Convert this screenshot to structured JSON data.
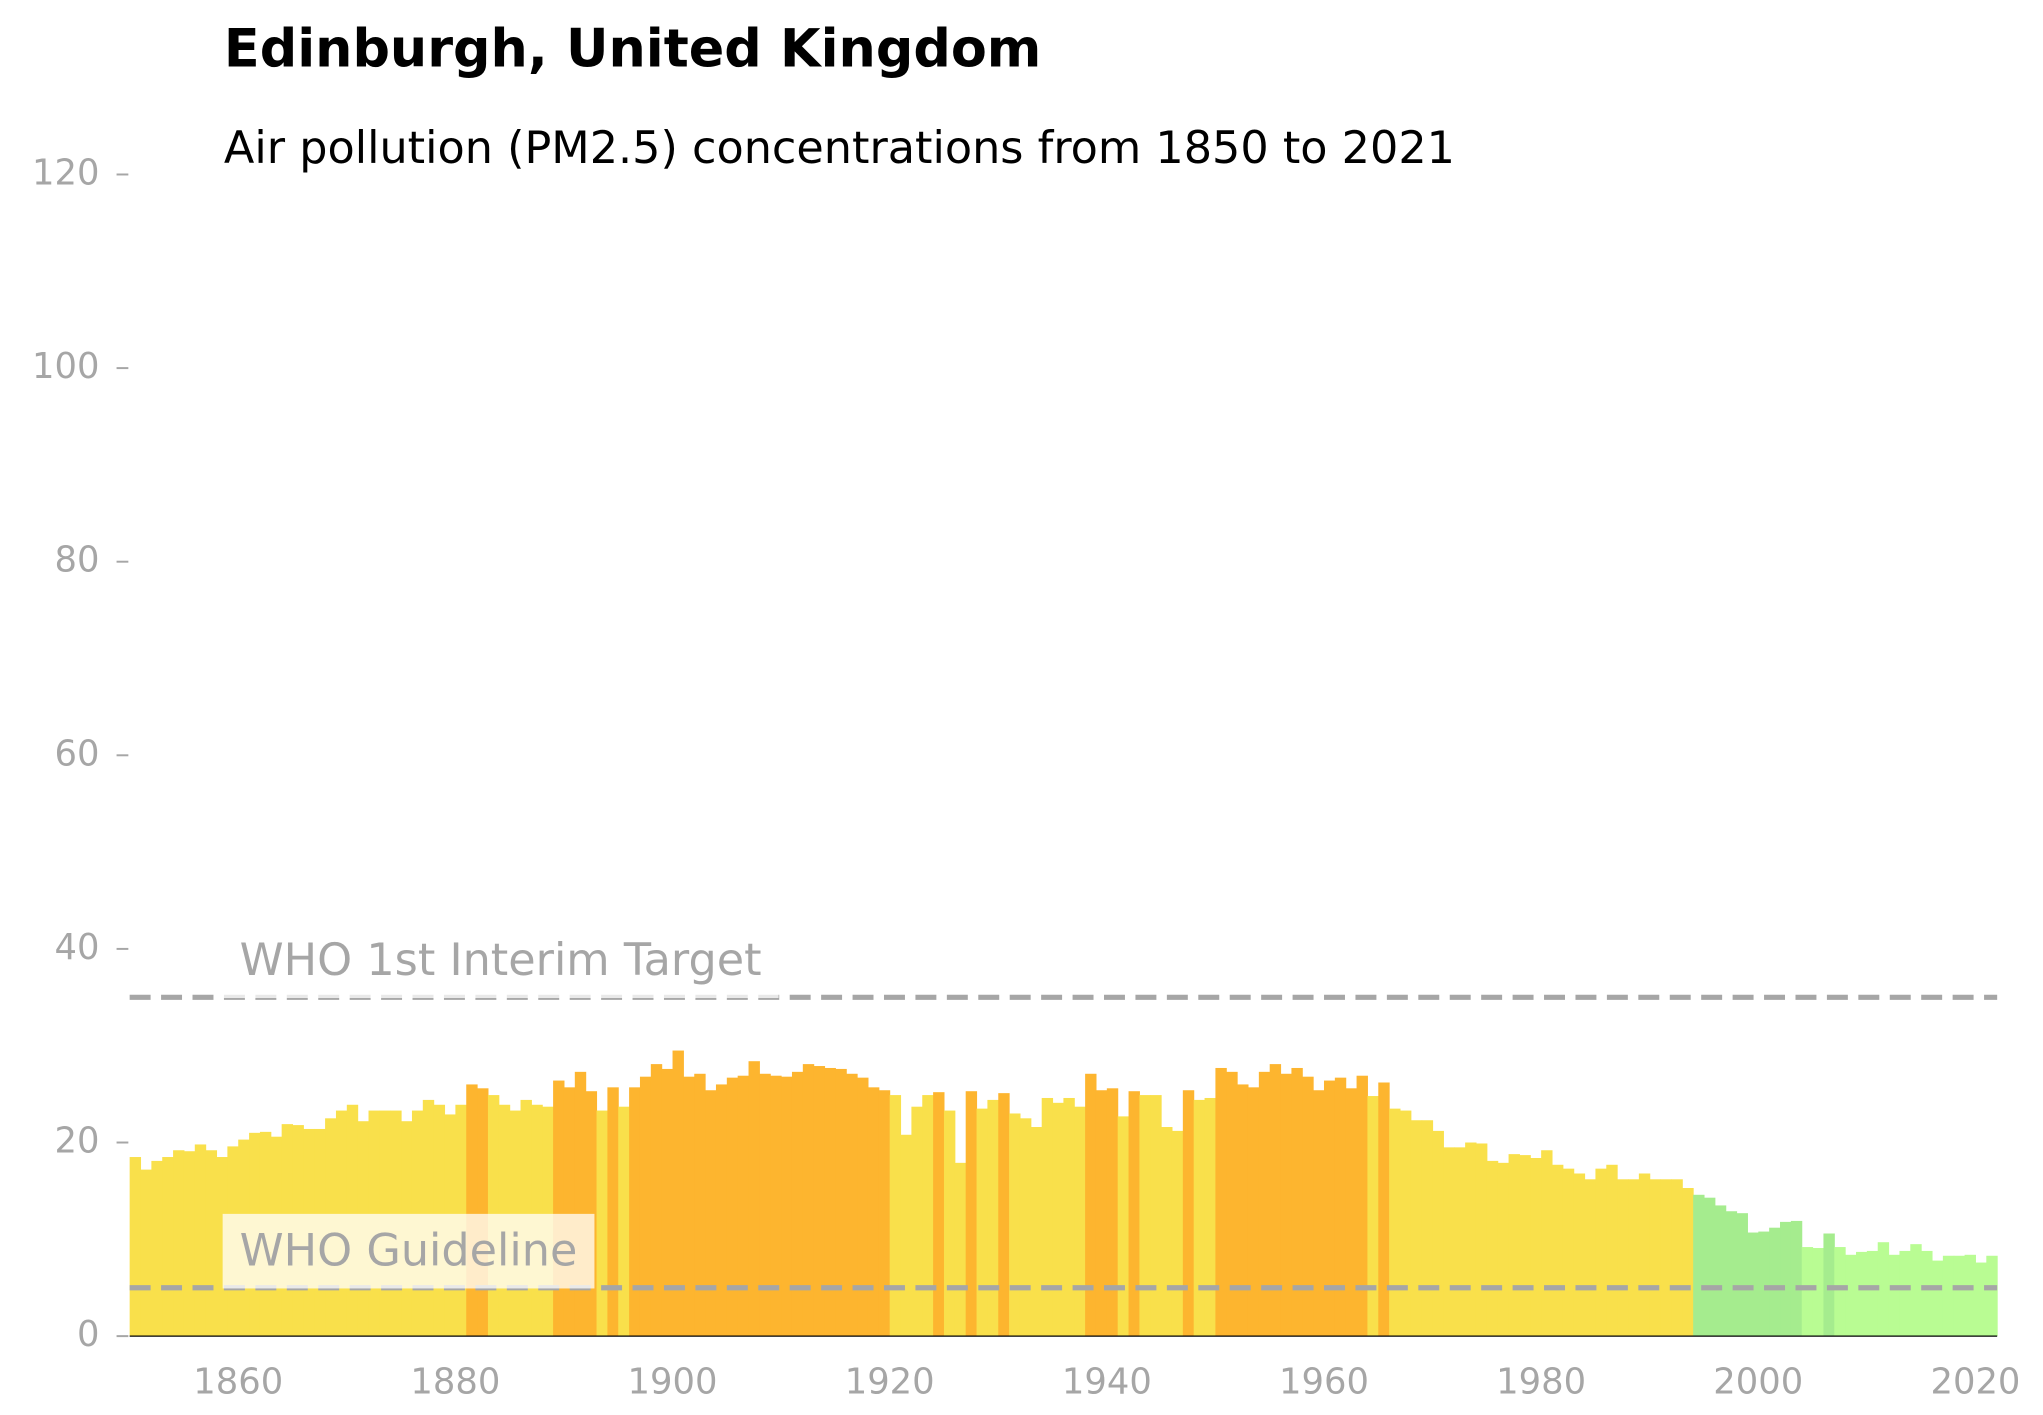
{
  "chart_data": {
    "type": "bar",
    "title": "Edinburgh, United Kingdom",
    "subtitle": "Air pollution (PM2.5) concentrations from 1850 to 2021",
    "x": [
      1850,
      1851,
      1852,
      1853,
      1854,
      1855,
      1856,
      1857,
      1858,
      1859,
      1860,
      1861,
      1862,
      1863,
      1864,
      1865,
      1866,
      1867,
      1868,
      1869,
      1870,
      1871,
      1872,
      1873,
      1874,
      1875,
      1876,
      1877,
      1878,
      1879,
      1880,
      1881,
      1882,
      1883,
      1884,
      1885,
      1886,
      1887,
      1888,
      1889,
      1890,
      1891,
      1892,
      1893,
      1894,
      1895,
      1896,
      1897,
      1898,
      1899,
      1900,
      1901,
      1902,
      1903,
      1904,
      1905,
      1906,
      1907,
      1908,
      1909,
      1910,
      1911,
      1912,
      1913,
      1914,
      1915,
      1916,
      1917,
      1918,
      1919,
      1920,
      1921,
      1922,
      1923,
      1924,
      1925,
      1926,
      1927,
      1928,
      1929,
      1930,
      1931,
      1932,
      1933,
      1934,
      1935,
      1936,
      1937,
      1938,
      1939,
      1940,
      1941,
      1942,
      1943,
      1944,
      1945,
      1946,
      1947,
      1948,
      1949,
      1950,
      1951,
      1952,
      1953,
      1954,
      1955,
      1956,
      1957,
      1958,
      1959,
      1960,
      1961,
      1962,
      1963,
      1964,
      1965,
      1966,
      1967,
      1968,
      1969,
      1970,
      1971,
      1972,
      1973,
      1974,
      1975,
      1976,
      1977,
      1978,
      1979,
      1980,
      1981,
      1982,
      1983,
      1984,
      1985,
      1986,
      1987,
      1988,
      1989,
      1990,
      1991,
      1992,
      1993,
      1994,
      1995,
      1996,
      1997,
      1998,
      1999,
      2000,
      2001,
      2002,
      2003,
      2004,
      2005,
      2006,
      2007,
      2008,
      2009,
      2010,
      2011,
      2012,
      2013,
      2014,
      2015,
      2016,
      2017,
      2018,
      2019,
      2020,
      2021
    ],
    "values": [
      18.5,
      17.2,
      18.1,
      18.5,
      19.2,
      19.1,
      19.8,
      19.2,
      18.5,
      19.6,
      20.3,
      21.0,
      21.1,
      20.6,
      21.9,
      21.8,
      21.4,
      21.4,
      22.5,
      23.3,
      23.9,
      22.2,
      23.3,
      23.3,
      23.3,
      22.2,
      23.3,
      24.4,
      23.9,
      22.9,
      23.9,
      26.0,
      25.6,
      24.9,
      23.9,
      23.3,
      24.4,
      23.9,
      23.7,
      26.4,
      25.7,
      27.3,
      25.3,
      23.3,
      25.7,
      23.7,
      25.7,
      26.8,
      28.1,
      27.6,
      29.5,
      26.8,
      27.1,
      25.4,
      26.0,
      26.7,
      26.9,
      28.4,
      27.1,
      26.9,
      26.8,
      27.3,
      28.1,
      27.9,
      27.7,
      27.6,
      27.1,
      26.7,
      25.7,
      25.4,
      24.9,
      20.8,
      23.7,
      24.9,
      25.2,
      23.3,
      17.9,
      25.3,
      23.5,
      24.4,
      25.1,
      23.0,
      22.5,
      21.6,
      24.6,
      24.1,
      24.6,
      23.7,
      27.1,
      25.4,
      25.6,
      22.7,
      25.3,
      24.9,
      24.9,
      21.6,
      21.2,
      25.4,
      24.4,
      24.6,
      27.7,
      27.3,
      26.0,
      25.7,
      27.3,
      28.1,
      27.1,
      27.7,
      26.8,
      25.4,
      26.4,
      26.7,
      25.6,
      26.9,
      24.8,
      26.2,
      23.5,
      23.3,
      22.3,
      22.3,
      21.2,
      19.5,
      19.5,
      20.0,
      19.9,
      18.1,
      17.9,
      18.8,
      18.7,
      18.4,
      19.2,
      17.7,
      17.3,
      16.8,
      16.2,
      17.3,
      17.7,
      16.2,
      16.2,
      16.8,
      16.2,
      16.2,
      16.2,
      15.3,
      14.6,
      14.3,
      13.5,
      12.9,
      12.7,
      10.7,
      10.8,
      11.2,
      11.8,
      11.9,
      9.2,
      9.1,
      10.6,
      9.2,
      8.4,
      8.7,
      8.8,
      9.7,
      8.4,
      8.8,
      9.5,
      8.8,
      7.8,
      8.3,
      8.3,
      8.4,
      7.6,
      8.3
    ],
    "colors": [
      "#f9e04b",
      "#f9e04b",
      "#f9e04b",
      "#f9e04b",
      "#f9e04b",
      "#f9e04b",
      "#f9e04b",
      "#f9e04b",
      "#f9e04b",
      "#f9e04b",
      "#f9e04b",
      "#f9e04b",
      "#f9e04b",
      "#f9e04b",
      "#f9e04b",
      "#f9e04b",
      "#f9e04b",
      "#f9e04b",
      "#f9e04b",
      "#f9e04b",
      "#f9e04b",
      "#f9e04b",
      "#f9e04b",
      "#f9e04b",
      "#f9e04b",
      "#f9e04b",
      "#f9e04b",
      "#f9e04b",
      "#f9e04b",
      "#f9e04b",
      "#f9e04b",
      "#fdb52f",
      "#fdb52f",
      "#f9e04b",
      "#f9e04b",
      "#f9e04b",
      "#f9e04b",
      "#f9e04b",
      "#f9e04b",
      "#fdb52f",
      "#fdb52f",
      "#fdb52f",
      "#fdb52f",
      "#f9e04b",
      "#fdb52f",
      "#f9e04b",
      "#fdb52f",
      "#fdb52f",
      "#fdb52f",
      "#fdb52f",
      "#fdb52f",
      "#fdb52f",
      "#fdb52f",
      "#fdb52f",
      "#fdb52f",
      "#fdb52f",
      "#fdb52f",
      "#fdb52f",
      "#fdb52f",
      "#fdb52f",
      "#fdb52f",
      "#fdb52f",
      "#fdb52f",
      "#fdb52f",
      "#fdb52f",
      "#fdb52f",
      "#fdb52f",
      "#fdb52f",
      "#fdb52f",
      "#fdb52f",
      "#f9e04b",
      "#f9e04b",
      "#f9e04b",
      "#f9e04b",
      "#fdb52f",
      "#f9e04b",
      "#f9e04b",
      "#fdb52f",
      "#f9e04b",
      "#f9e04b",
      "#fdb52f",
      "#f9e04b",
      "#f9e04b",
      "#f9e04b",
      "#f9e04b",
      "#f9e04b",
      "#f9e04b",
      "#f9e04b",
      "#fdb52f",
      "#fdb52f",
      "#fdb52f",
      "#f9e04b",
      "#fdb52f",
      "#f9e04b",
      "#f9e04b",
      "#f9e04b",
      "#f9e04b",
      "#fdb52f",
      "#f9e04b",
      "#f9e04b",
      "#fdb52f",
      "#fdb52f",
      "#fdb52f",
      "#fdb52f",
      "#fdb52f",
      "#fdb52f",
      "#fdb52f",
      "#fdb52f",
      "#fdb52f",
      "#fdb52f",
      "#fdb52f",
      "#fdb52f",
      "#fdb52f",
      "#fdb52f",
      "#f9e04b",
      "#fdb52f",
      "#f9e04b",
      "#f9e04b",
      "#f9e04b",
      "#f9e04b",
      "#f9e04b",
      "#f9e04b",
      "#f9e04b",
      "#f9e04b",
      "#f9e04b",
      "#f9e04b",
      "#f9e04b",
      "#f9e04b",
      "#f9e04b",
      "#f9e04b",
      "#f9e04b",
      "#f9e04b",
      "#f9e04b",
      "#f9e04b",
      "#f9e04b",
      "#f9e04b",
      "#f9e04b",
      "#f9e04b",
      "#f9e04b",
      "#f9e04b",
      "#f9e04b",
      "#f9e04b",
      "#f9e04b",
      "#f9e04b",
      "#a5ec8e",
      "#a5ec8e",
      "#a5ec8e",
      "#a5ec8e",
      "#a5ec8e",
      "#a5ec8e",
      "#a5ec8e",
      "#a5ec8e",
      "#a5ec8e",
      "#a5ec8e",
      "#b9fc93",
      "#b9fc93",
      "#a5ec8e",
      "#b9fc93",
      "#b9fc93",
      "#b9fc93",
      "#b9fc93",
      "#b9fc93",
      "#b9fc93",
      "#b9fc93",
      "#b9fc93",
      "#b9fc93",
      "#b9fc93",
      "#b9fc93",
      "#b9fc93",
      "#b9fc93",
      "#b9fc93",
      "#b9fc93"
    ],
    "reference_lines": [
      {
        "label": "WHO 1st Interim Target",
        "value": 35
      },
      {
        "label": "WHO Guideline",
        "value": 5
      }
    ],
    "xlim": [
      1850,
      2022
    ],
    "xticks": [
      1860,
      1880,
      1900,
      1920,
      1940,
      1960,
      1980,
      2000,
      2020
    ],
    "ylim": [
      0,
      120
    ],
    "yticks": [
      0,
      20,
      40,
      60,
      80,
      100,
      120
    ],
    "grid": false
  }
}
